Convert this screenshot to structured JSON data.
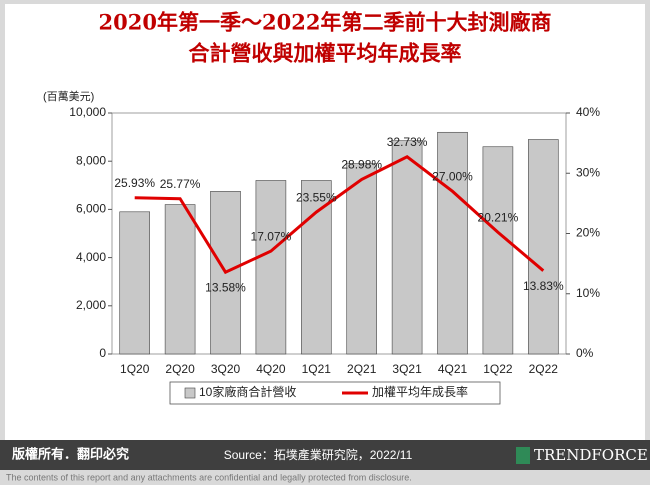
{
  "chart_data": {
    "type": "bar-line",
    "title": [
      "2020年第一季～2022年第二季前十大封測廠商",
      "合計營收與加權平均年成長率"
    ],
    "y_axis_label": "(百萬美元)",
    "categories": [
      "1Q20",
      "2Q20",
      "3Q20",
      "4Q20",
      "1Q21",
      "2Q21",
      "3Q21",
      "4Q21",
      "1Q22",
      "2Q22"
    ],
    "series": [
      {
        "name": "10家廠商合計營收",
        "type": "bar",
        "color": "#c8c8c8",
        "axis": "y",
        "values": [
          5900,
          6200,
          6750,
          7200,
          7200,
          7900,
          8850,
          9200,
          8600,
          8900
        ]
      },
      {
        "name": "加權平均年成長率",
        "type": "line",
        "color": "#e00000",
        "axis": "y2",
        "values": [
          25.93,
          25.77,
          13.58,
          17.07,
          23.55,
          28.98,
          32.73,
          27.0,
          20.21,
          13.83
        ],
        "value_labels": [
          "25.93%",
          "25.77%",
          "13.58%",
          "17.07%",
          "23.55%",
          "28.98%",
          "32.73%",
          "27.00%",
          "20.21%",
          "13.83%"
        ]
      }
    ],
    "ylim": [
      0,
      10000
    ],
    "yticks": [
      0,
      {
        "value": 2000,
        "label": "2,000"
      },
      {
        "value": 4000,
        "label": "4,000"
      },
      {
        "value": 6000,
        "label": "6,000"
      },
      {
        "value": 8000,
        "label": "8,000"
      },
      {
        "value": 10000,
        "label": "10,000"
      }
    ],
    "y2lim": [
      0,
      40
    ],
    "y2ticks": [
      {
        "value": 0,
        "label": "0%"
      },
      {
        "value": 10,
        "label": "10%"
      },
      {
        "value": 20,
        "label": "20%"
      },
      {
        "value": 30,
        "label": "30%"
      },
      {
        "value": 40,
        "label": "40%"
      }
    ],
    "legend": "bottom"
  },
  "footer": {
    "rights": "版權所有．翻印必究",
    "source": "Source：拓墣產業研究院，2022/11",
    "brand": "TRENDFORCE",
    "disclaimer": "The contents of this report and any attachments are confidential and legally protected from disclosure."
  }
}
